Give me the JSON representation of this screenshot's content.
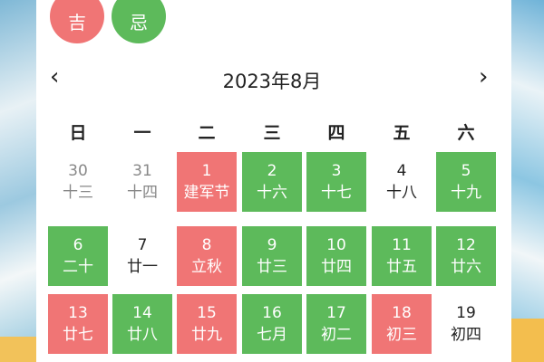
{
  "legend": {
    "good": "吉",
    "bad": "忌"
  },
  "header": {
    "title": "2023年8月",
    "prev_icon": "chevron-left-icon",
    "next_icon": "chevron-right-icon",
    "prev": "‹",
    "next": "›"
  },
  "colors": {
    "good": "#f07575",
    "bad": "#5dba5b"
  },
  "weekdays": [
    "日",
    "一",
    "二",
    "三",
    "四",
    "五",
    "六"
  ],
  "days": [
    {
      "day": "30",
      "lunar": "十三",
      "type": "other"
    },
    {
      "day": "31",
      "lunar": "十四",
      "type": "other"
    },
    {
      "day": "1",
      "lunar": "建军节",
      "type": "red"
    },
    {
      "day": "2",
      "lunar": "十六",
      "type": "green"
    },
    {
      "day": "3",
      "lunar": "十七",
      "type": "green"
    },
    {
      "day": "4",
      "lunar": "十八",
      "type": "plain"
    },
    {
      "day": "5",
      "lunar": "十九",
      "type": "green"
    },
    {
      "day": "6",
      "lunar": "二十",
      "type": "green"
    },
    {
      "day": "7",
      "lunar": "廿一",
      "type": "plain"
    },
    {
      "day": "8",
      "lunar": "立秋",
      "type": "red"
    },
    {
      "day": "9",
      "lunar": "廿三",
      "type": "green"
    },
    {
      "day": "10",
      "lunar": "廿四",
      "type": "green"
    },
    {
      "day": "11",
      "lunar": "廿五",
      "type": "green"
    },
    {
      "day": "12",
      "lunar": "廿六",
      "type": "green"
    },
    {
      "day": "13",
      "lunar": "廿七",
      "type": "red"
    },
    {
      "day": "14",
      "lunar": "廿八",
      "type": "green"
    },
    {
      "day": "15",
      "lunar": "廿九",
      "type": "red"
    },
    {
      "day": "16",
      "lunar": "七月",
      "type": "green"
    },
    {
      "day": "17",
      "lunar": "初二",
      "type": "green"
    },
    {
      "day": "18",
      "lunar": "初三",
      "type": "red"
    },
    {
      "day": "19",
      "lunar": "初四",
      "type": "plain"
    }
  ]
}
